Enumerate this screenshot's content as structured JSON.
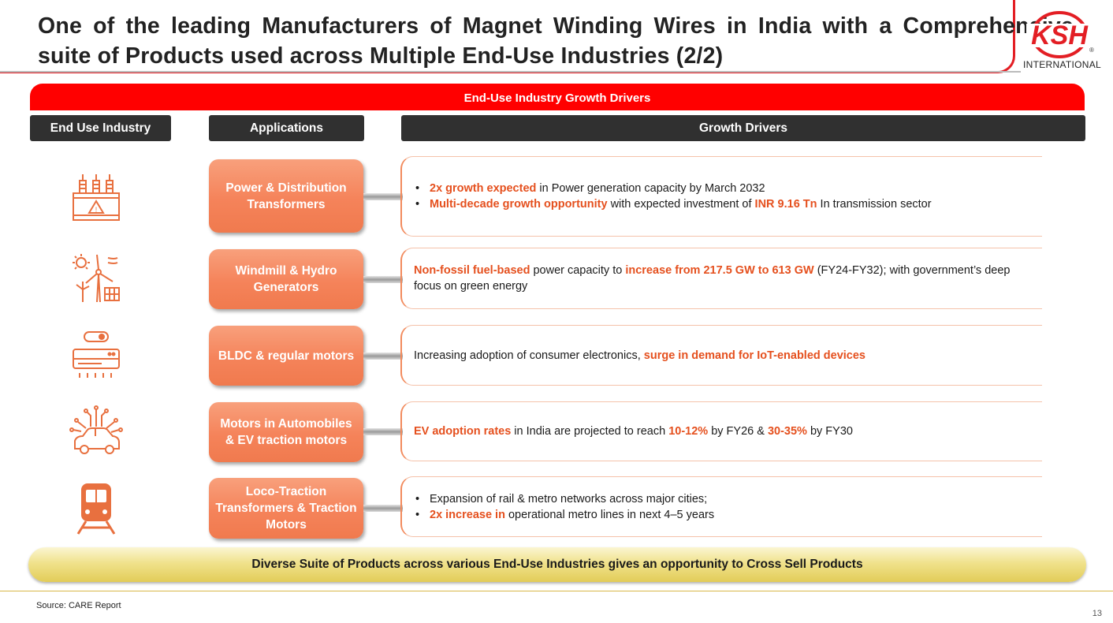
{
  "header": {
    "title_line1": "One of the leading Manufacturers of Magnet Winding Wires in India with a Comprehensive",
    "title_line2": "suite of Products used across Multiple End-Use Industries (2/2)",
    "logo_text": "KSH",
    "logo_registered": "®",
    "logo_caption": "INTERNATIONAL"
  },
  "banner": "End-Use Industry Growth Drivers",
  "columns": {
    "industry": "End Use Industry",
    "applications": "Applications",
    "drivers": "Growth Drivers"
  },
  "rows": [
    {
      "icon": "transformer-icon",
      "application": "Power & Distribution Transformers",
      "drivers": [
        {
          "bullet": true,
          "parts": [
            {
              "t": "2x growth expected",
              "hl": true
            },
            {
              "t": " in Power generation capacity by March 2032",
              "hl": false
            }
          ]
        },
        {
          "bullet": true,
          "parts": [
            {
              "t": "Multi-decade growth opportunity",
              "hl": true
            },
            {
              "t": " with expected investment of ",
              "hl": false
            },
            {
              "t": "INR 9.16 Tn",
              "hl": true
            },
            {
              "t": " In transmission sector",
              "hl": false
            }
          ]
        }
      ]
    },
    {
      "icon": "windmill-solar-icon",
      "application": "Windmill & Hydro Generators",
      "drivers": [
        {
          "bullet": false,
          "parts": [
            {
              "t": "Non-fossil fuel-based",
              "hl": true
            },
            {
              "t": " power capacity to ",
              "hl": false
            },
            {
              "t": "increase from 217.5 GW to 613 GW",
              "hl": true
            },
            {
              "t": " (FY24-FY32); with government’s deep focus on green energy",
              "hl": false
            }
          ]
        }
      ]
    },
    {
      "icon": "air-conditioner-icon",
      "application": "BLDC & regular motors",
      "drivers": [
        {
          "bullet": false,
          "parts": [
            {
              "t": "Increasing adoption of consumer electronics, ",
              "hl": false
            },
            {
              "t": "surge in demand for IoT-enabled devices",
              "hl": true
            }
          ]
        }
      ]
    },
    {
      "icon": "electric-car-icon",
      "application": "Motors in Automobiles & EV traction motors",
      "drivers": [
        {
          "bullet": false,
          "parts": [
            {
              "t": "EV adoption rates",
              "hl": true
            },
            {
              "t": " in India are projected to reach ",
              "hl": false
            },
            {
              "t": "10-12%",
              "hl": true
            },
            {
              "t": " by FY26 & ",
              "hl": false
            },
            {
              "t": "30-35%",
              "hl": true
            },
            {
              "t": " by FY30",
              "hl": false
            }
          ]
        }
      ]
    },
    {
      "icon": "train-icon",
      "application": "Loco-Traction Transformers & Traction Motors",
      "drivers": [
        {
          "bullet": true,
          "parts": [
            {
              "t": "Expansion of rail & metro networks across major cities;",
              "hl": false
            }
          ]
        },
        {
          "bullet": true,
          "parts": [
            {
              "t": "2x increase in",
              "hl": true
            },
            {
              "t": " operational metro lines in next 4–5 years",
              "hl": false
            }
          ]
        }
      ]
    }
  ],
  "bottom_banner": "Diverse Suite of Products across various End-Use Industries gives an opportunity to Cross Sell  Products",
  "footer": {
    "source": "Source: CARE Report",
    "page_number": "13"
  },
  "colors": {
    "brand_red": "#ff0000",
    "highlight_orange": "#e5501e",
    "app_box_orange": "#f5835a",
    "header_dark": "#303030",
    "pill_gold": "#f0e28c"
  }
}
